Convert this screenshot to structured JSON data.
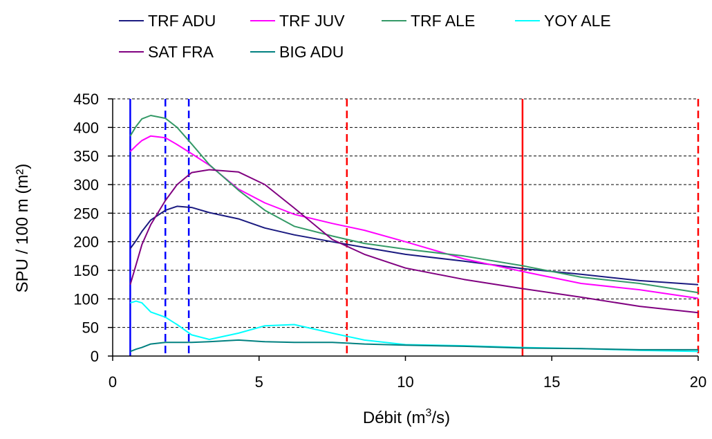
{
  "chart_data": {
    "type": "line",
    "xlabel": "Débit (m",
    "xlabel_sup": "3",
    "xlabel_tail": "/s)",
    "ylabel": "SPU / 100 m (m²)",
    "xlim": [
      0,
      20
    ],
    "ylim": [
      0,
      450
    ],
    "x_ticks": [
      0,
      5,
      10,
      15,
      20
    ],
    "y_ticks": [
      0,
      50,
      100,
      150,
      200,
      250,
      300,
      350,
      400,
      450
    ],
    "grid": "horizontal-dashed",
    "legend_position": "top",
    "series": [
      {
        "name": "TRF ADU",
        "color": "#1a1a80",
        "x": [
          0.6,
          0.8,
          1.0,
          1.3,
          1.8,
          2.2,
          2.7,
          3.3,
          4.3,
          5.2,
          6.2,
          7.5,
          8.6,
          10.0,
          12.0,
          14.0,
          16.0,
          18.0,
          20.0
        ],
        "y": [
          188,
          202,
          218,
          238,
          255,
          262,
          260,
          251,
          240,
          224,
          212,
          200,
          190,
          178,
          166,
          153,
          143,
          132,
          125
        ]
      },
      {
        "name": "TRF JUV",
        "color": "#ff00ff",
        "x": [
          0.6,
          0.8,
          1.0,
          1.3,
          1.8,
          2.2,
          2.7,
          3.3,
          4.3,
          5.2,
          6.2,
          7.5,
          8.6,
          10.0,
          12.0,
          14.0,
          16.0,
          18.0,
          20.0
        ],
        "y": [
          358,
          368,
          377,
          385,
          382,
          370,
          354,
          334,
          292,
          268,
          248,
          232,
          220,
          200,
          170,
          148,
          127,
          116,
          101
        ]
      },
      {
        "name": "TRF ALE",
        "color": "#339966",
        "x": [
          0.6,
          0.8,
          1.0,
          1.3,
          1.8,
          2.2,
          2.7,
          3.3,
          4.3,
          5.2,
          6.2,
          7.5,
          8.6,
          10.0,
          12.0,
          14.0,
          16.0,
          18.0,
          20.0
        ],
        "y": [
          385,
          402,
          415,
          421,
          416,
          400,
          371,
          335,
          290,
          255,
          227,
          210,
          197,
          187,
          175,
          158,
          138,
          127,
          111
        ]
      },
      {
        "name": "YOY ALE",
        "color": "#00ffff",
        "x": [
          0.6,
          0.8,
          1.0,
          1.3,
          1.8,
          2.2,
          2.7,
          3.3,
          4.3,
          5.2,
          6.2,
          7.5,
          8.6,
          10.0,
          12.0,
          14.0,
          16.0,
          18.0,
          20.0
        ],
        "y": [
          93,
          96,
          93,
          77,
          68,
          55,
          37,
          29,
          40,
          53,
          55,
          40,
          28,
          20,
          18,
          15,
          13,
          10,
          8
        ]
      },
      {
        "name": "SAT FRA",
        "color": "#800080",
        "x": [
          0.6,
          0.8,
          1.0,
          1.3,
          1.8,
          2.2,
          2.7,
          3.3,
          4.3,
          5.2,
          6.2,
          7.5,
          8.6,
          10.0,
          12.0,
          14.0,
          16.0,
          18.0,
          20.0
        ],
        "y": [
          125,
          160,
          195,
          230,
          272,
          300,
          321,
          326,
          322,
          300,
          259,
          204,
          178,
          154,
          134,
          118,
          103,
          87,
          76
        ]
      },
      {
        "name": "BIG ADU",
        "color": "#008080",
        "x": [
          0.6,
          0.8,
          1.0,
          1.3,
          1.8,
          2.2,
          2.7,
          3.3,
          4.3,
          5.2,
          6.2,
          7.5,
          8.6,
          10.0,
          12.0,
          14.0,
          16.0,
          18.0,
          20.0
        ],
        "y": [
          8,
          12,
          15,
          21,
          24,
          24,
          24,
          25,
          28,
          25,
          24,
          24,
          21,
          19,
          17,
          14,
          13,
          11,
          11
        ]
      }
    ],
    "reference_lines": [
      {
        "x": 0.6,
        "color": "#0000ff",
        "style": "solid"
      },
      {
        "x": 1.8,
        "color": "#0000ff",
        "style": "dashed"
      },
      {
        "x": 2.6,
        "color": "#0000ff",
        "style": "dashed"
      },
      {
        "x": 8.0,
        "color": "#ff0000",
        "style": "dashed"
      },
      {
        "x": 14.0,
        "color": "#ff0000",
        "style": "solid"
      },
      {
        "x": 20.0,
        "color": "#ff0000",
        "style": "dashed"
      }
    ]
  }
}
